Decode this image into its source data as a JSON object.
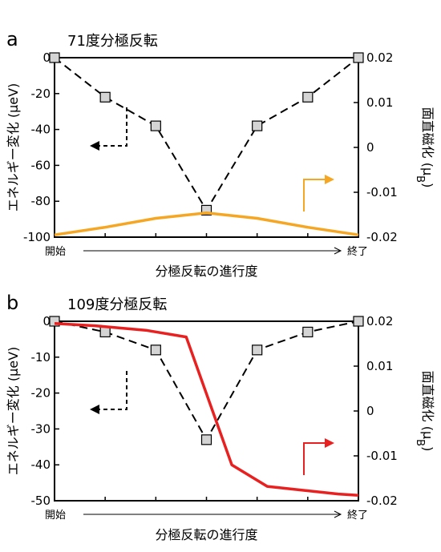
{
  "chart_data": [
    {
      "panel_label": "a",
      "type": "line",
      "title": "71度分極反転",
      "xlabel": "分極反転の進行度",
      "x_start_label": "開始",
      "x_end_label": "終了",
      "ylabel_left": "エネルギー変化 (μeV)",
      "ylabel_right": "面直磁化 (μ",
      "ylabel_right_sub": "B",
      "ylabel_right_close": ")",
      "y_left_lim": [
        -100,
        0
      ],
      "y_left_ticks": [
        "0",
        "-20",
        "-40",
        "-60",
        "-80",
        "-100"
      ],
      "y_left_tick_values": [
        0,
        -20,
        -40,
        -60,
        -80,
        -100
      ],
      "y_right_lim": [
        -0.02,
        0.02
      ],
      "y_right_ticks": [
        "0.02",
        "0.01",
        "0",
        "-0.01",
        "-0.02"
      ],
      "y_right_tick_values": [
        0.02,
        0.01,
        0,
        -0.01,
        -0.02
      ],
      "x": [
        0,
        1,
        2,
        3,
        4,
        5,
        6
      ],
      "series": [
        {
          "axis": "left",
          "style": "dashed-squares",
          "color": "#000000",
          "values": [
            0,
            -22,
            -38,
            -85,
            -38,
            -22,
            0
          ]
        },
        {
          "axis": "right",
          "style": "solid",
          "color": "#f5a623",
          "values": [
            -0.0195,
            -0.0178,
            -0.0158,
            -0.0146,
            -0.0158,
            -0.0178,
            -0.0195
          ]
        }
      ],
      "arrow_left_color": "#000000",
      "arrow_right_color": "#f5a623"
    },
    {
      "panel_label": "b",
      "type": "line",
      "title": "109度分極反転",
      "xlabel": "分極反転の進行度",
      "x_start_label": "開始",
      "x_end_label": "終了",
      "ylabel_left": "エネルギー変化 (μeV)",
      "ylabel_right": "面直磁化 (μ",
      "ylabel_right_sub": "B",
      "ylabel_right_close": ")",
      "y_left_lim": [
        -50,
        0
      ],
      "y_left_ticks": [
        "0",
        "-10",
        "-20",
        "-30",
        "-40",
        "-50"
      ],
      "y_left_tick_values": [
        0,
        -10,
        -20,
        -30,
        -40,
        -50
      ],
      "y_right_lim": [
        -0.02,
        0.02
      ],
      "y_right_ticks": [
        "0.02",
        "0.01",
        "0",
        "-0.01",
        "-0.02"
      ],
      "y_right_tick_values": [
        0.02,
        0.01,
        0,
        -0.01,
        -0.02
      ],
      "x": [
        0,
        1,
        2,
        3,
        4,
        5,
        6
      ],
      "series": [
        {
          "axis": "left",
          "style": "dashed-squares",
          "color": "#000000",
          "values": [
            0,
            -3,
            -8,
            -33,
            -8,
            -3,
            0
          ]
        },
        {
          "axis": "right",
          "style": "solid",
          "color": "#e82020",
          "x": [
            0,
            0.8,
            1.8,
            2.6,
            3.5,
            4.2,
            5.6,
            6
          ],
          "values": [
            0.0195,
            0.019,
            0.018,
            0.0165,
            -0.012,
            -0.0168,
            -0.0185,
            -0.0188
          ]
        }
      ],
      "arrow_left_color": "#000000",
      "arrow_right_color": "#e82020"
    }
  ]
}
